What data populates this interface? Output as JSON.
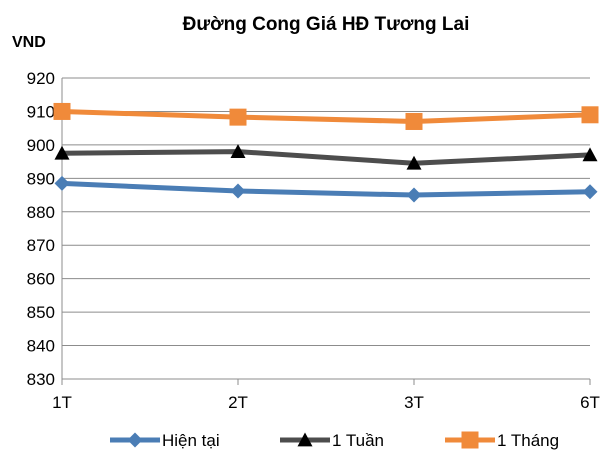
{
  "chart_data": {
    "type": "line",
    "title": "Đường Cong Giá HĐ Tương Lai",
    "ylabel": "VND",
    "xlabel": "",
    "categories": [
      "1T",
      "2T",
      "3T",
      "6T"
    ],
    "ylim": [
      830,
      920
    ],
    "yticks": [
      830,
      840,
      850,
      860,
      870,
      880,
      890,
      900,
      910,
      920
    ],
    "grid": true,
    "legend_position": "bottom",
    "series": [
      {
        "name": "Hiện tại",
        "values": [
          888.5,
          886.2,
          885.0,
          886.0
        ],
        "color": "#4a7db5",
        "marker": "diamond"
      },
      {
        "name": "1 Tuần",
        "values": [
          897.5,
          898.0,
          894.5,
          897.0
        ],
        "color": "#4d4d4d",
        "marker": "triangle"
      },
      {
        "name": "1 Tháng",
        "values": [
          910.0,
          908.3,
          907.0,
          909.0
        ],
        "color": "#f08a3a",
        "marker": "square"
      }
    ]
  }
}
